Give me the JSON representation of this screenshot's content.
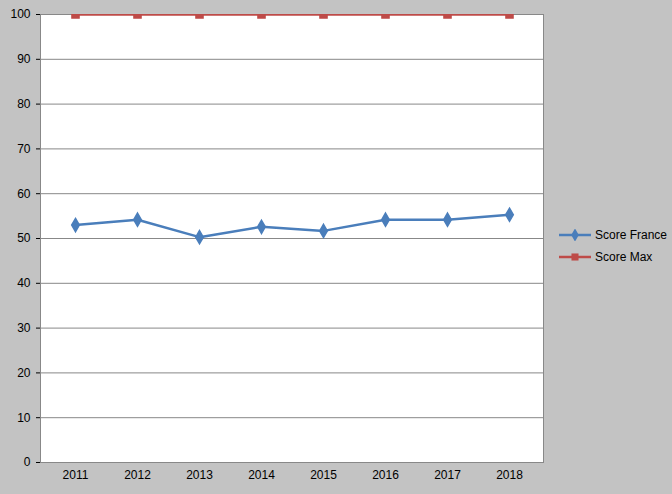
{
  "chart_data": {
    "type": "line",
    "categories": [
      "2011",
      "2012",
      "2013",
      "2014",
      "2015",
      "2016",
      "2017",
      "2018"
    ],
    "series": [
      {
        "name": "Score France",
        "color": "#4a7ebb",
        "marker": "diamond",
        "values": [
          53.0,
          54.2,
          50.3,
          52.6,
          51.7,
          54.2,
          54.2,
          55.3
        ]
      },
      {
        "name": "Score Max",
        "color": "#be4b48",
        "marker": "square",
        "values": [
          100,
          100,
          100,
          100,
          100,
          100,
          100,
          100
        ]
      }
    ],
    "ylim": [
      0,
      100
    ],
    "yticks": [
      0,
      10,
      20,
      30,
      40,
      50,
      60,
      70,
      80,
      90,
      100
    ],
    "grid": true,
    "legend": "right"
  }
}
